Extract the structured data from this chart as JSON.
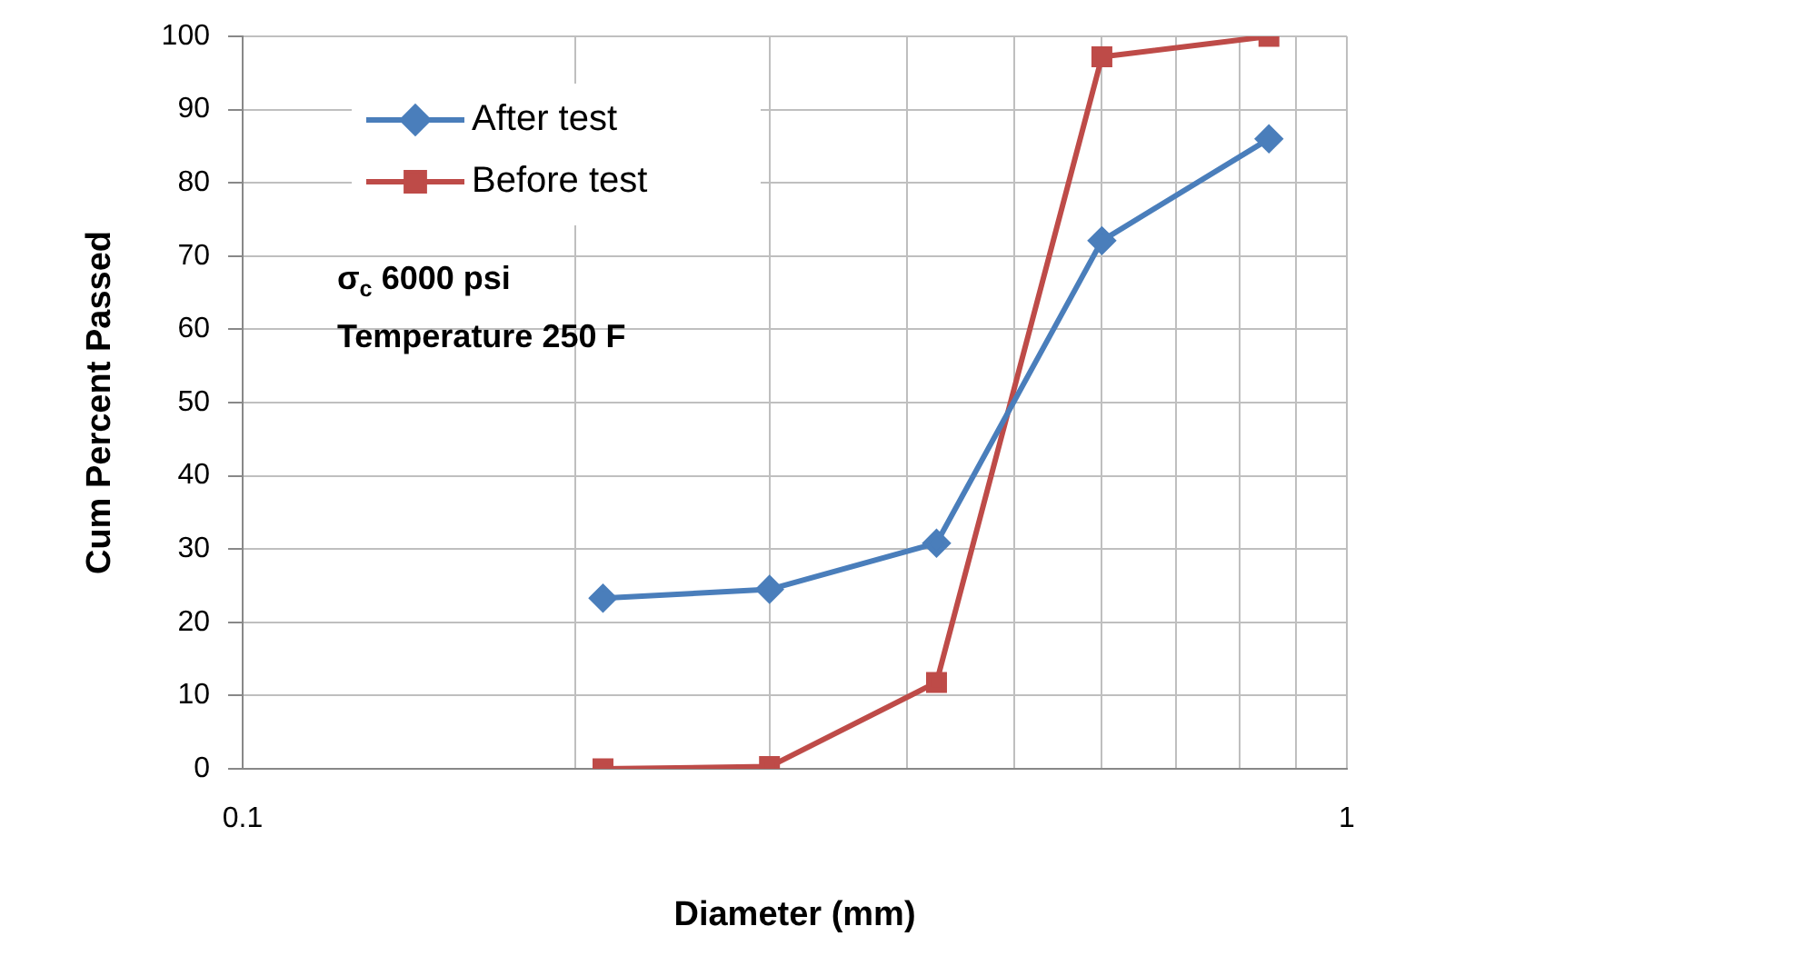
{
  "chart_data": {
    "type": "line",
    "xlabel": "Diameter (mm)",
    "ylabel": "Cum Percent Passed",
    "log": "x",
    "grid": true,
    "legend": "top left",
    "xlim": [
      0.1,
      1
    ],
    "xticks": [
      0.1,
      {
        "value": 0.2,
        "label": null
      },
      {
        "value": 0.3,
        "label": null
      },
      {
        "value": 0.4,
        "label": null
      },
      {
        "value": 0.5,
        "label": null
      },
      {
        "value": 0.6,
        "label": null
      },
      {
        "value": 0.7,
        "label": null
      },
      {
        "value": 0.8,
        "label": null
      },
      {
        "value": 0.9,
        "label": null
      },
      1
    ],
    "ylim": [
      0,
      100
    ],
    "yticks": [
      0,
      10,
      20,
      30,
      40,
      50,
      60,
      70,
      80,
      90,
      100
    ],
    "x": [
      0.212,
      0.3,
      0.425,
      0.6,
      0.85
    ],
    "series": [
      {
        "name": "After test",
        "color": "#4a7ebb",
        "marker": "diamond",
        "values": [
          23.3,
          24.5,
          30.8,
          72.1,
          86
        ]
      },
      {
        "name": "Before test",
        "color": "#be4b48",
        "marker": "square",
        "values": [
          0,
          0.3,
          11.8,
          97.2,
          100
        ]
      }
    ],
    "annotations": [
      "σ$_{c}$ 6000 psi",
      "Temperature 250 F"
    ]
  }
}
